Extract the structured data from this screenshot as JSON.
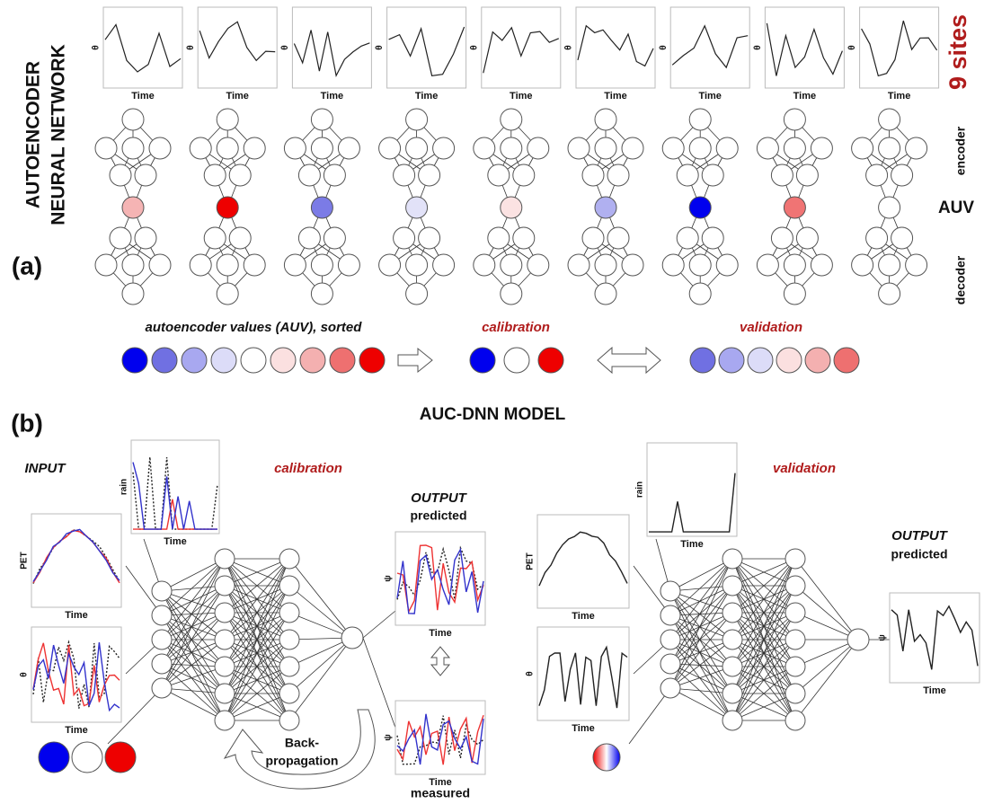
{
  "panel_a": {
    "label": "(a)",
    "title_lines": [
      "AUTOENCODER",
      "NEURAL NETWORK"
    ],
    "sites_label": "9 sites",
    "encoder_label": "encoder",
    "auv_label": "AUV",
    "decoder_label": "decoder",
    "site_plots": [
      {
        "y_label": "θ",
        "x_label": "Time"
      },
      {
        "y_label": "θ",
        "x_label": "Time"
      },
      {
        "y_label": "θ",
        "x_label": "Time"
      },
      {
        "y_label": "θ",
        "x_label": "Time"
      },
      {
        "y_label": "θ",
        "x_label": "Time"
      },
      {
        "y_label": "θ",
        "x_label": "Time"
      },
      {
        "y_label": "θ",
        "x_label": "Time"
      },
      {
        "y_label": "θ",
        "x_label": "Time"
      },
      {
        "y_label": "θ",
        "x_label": "Time"
      }
    ],
    "sorted_label": "autoencoder values (AUV), sorted",
    "calibration_label": "calibration",
    "validation_label": "validation"
  },
  "panel_b": {
    "label": "(b)",
    "title": "AUC-DNN MODEL",
    "input_label": "INPUT",
    "calibration_label": "calibration",
    "output_label": "OUTPUT",
    "predicted_label": "predicted",
    "measured_label": "measured",
    "backprop_lines": [
      "Back-",
      "propagation"
    ],
    "validation_label": "validation",
    "validation_output_label": "OUTPUT",
    "validation_predicted_label": "predicted",
    "calibration_plots": [
      {
        "y_label": "rain",
        "x_label": "Time"
      },
      {
        "y_label": "PET",
        "x_label": "Time"
      },
      {
        "y_label": "θ",
        "x_label": "Time"
      },
      {
        "y_label": "ψ",
        "x_label": "Time"
      },
      {
        "y_label": "ψ",
        "x_label": "Time"
      }
    ],
    "validation_plots": [
      {
        "y_label": "rain",
        "x_label": "Time"
      },
      {
        "y_label": "PET",
        "x_label": "Time"
      },
      {
        "y_label": "θ",
        "x_label": "Time"
      },
      {
        "y_label": "ψ",
        "x_label": "Time"
      }
    ]
  }
}
